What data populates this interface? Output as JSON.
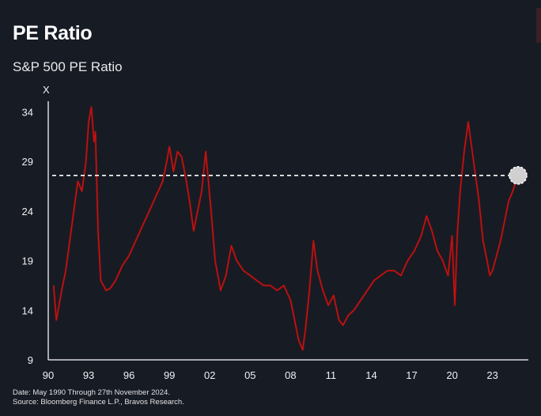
{
  "header": {
    "title": "PE Ratio",
    "subtitle": "S&P 500 PE Ratio"
  },
  "footer": {
    "date_note": "Date: May 1990 Through 27th November 2024.",
    "source_note": "Source: Bloomberg Finance L.P., Bravos Research."
  },
  "chart_data": {
    "type": "line",
    "title": "",
    "xlabel": "",
    "ylabel": "X",
    "xlim": [
      1990,
      2024.9
    ],
    "ylim": [
      9,
      35
    ],
    "x_ticks": [
      {
        "value": 1990,
        "label": "90"
      },
      {
        "value": 1993,
        "label": "93"
      },
      {
        "value": 1996,
        "label": "96"
      },
      {
        "value": 1999,
        "label": "99"
      },
      {
        "value": 2002,
        "label": "02"
      },
      {
        "value": 2005,
        "label": "05"
      },
      {
        "value": 2008,
        "label": "08"
      },
      {
        "value": 2011,
        "label": "11"
      },
      {
        "value": 2014,
        "label": "14"
      },
      {
        "value": 2017,
        "label": "17"
      },
      {
        "value": 2020,
        "label": "20"
      },
      {
        "value": 2023,
        "label": "23"
      }
    ],
    "y_ticks": [
      9,
      14,
      19,
      24,
      29,
      34
    ],
    "reference_line": {
      "y": 27.6,
      "style": "dashed"
    },
    "current_point": {
      "x": 2024.9,
      "y": 27.6
    },
    "colors": {
      "line": "#cc1010",
      "line_dim": "#5a1818",
      "reference": "#ffffff",
      "marker": "#d0d0d0"
    },
    "grid": false,
    "series": [
      {
        "x": [
          1990.4,
          1990.6,
          1990.8,
          1991.0,
          1991.3,
          1991.6,
          1991.9,
          1992.2,
          1992.5,
          1992.8,
          1993.0,
          1993.2,
          1993.4,
          1993.5,
          1993.7,
          1993.9,
          1994.1,
          1994.3,
          1994.6,
          1995.0,
          1995.5,
          1996.0,
          1996.5,
          1997.0,
          1997.5,
          1998.0,
          1998.5,
          1998.8,
          1999.0,
          1999.3,
          1999.6,
          1999.9,
          2000.2,
          2000.5,
          2000.8,
          2001.1,
          2001.4,
          2001.7,
          2001.9,
          2002.1,
          2002.4,
          2002.8,
          2003.2,
          2003.6,
          2004.0,
          2004.5,
          2005.0,
          2005.5,
          2006.0,
          2006.5,
          2007.0,
          2007.5,
          2008.0,
          2008.3,
          2008.6,
          2008.9,
          2009.1,
          2009.4,
          2009.7,
          2010.0,
          2010.4,
          2010.8,
          2011.2,
          2011.6,
          2011.9,
          2012.3,
          2012.7,
          2013.2,
          2013.7,
          2014.2,
          2014.7,
          2015.2,
          2015.7,
          2016.2,
          2016.7,
          2017.2,
          2017.7,
          2018.1,
          2018.5,
          2018.9,
          2019.3,
          2019.7,
          2020.0,
          2020.2,
          2020.4,
          2020.6,
          2020.9,
          2021.2,
          2021.4,
          2021.7,
          2022.0,
          2022.3,
          2022.6,
          2022.8,
          2023.0,
          2023.3,
          2023.6,
          2023.9,
          2024.2,
          2024.5,
          2024.9
        ],
        "y": [
          16.5,
          13.0,
          14.5,
          16.0,
          18.0,
          21.0,
          24.0,
          27.0,
          26.0,
          29.0,
          33.0,
          34.5,
          31.0,
          32.0,
          22.0,
          17.0,
          16.5,
          16.0,
          16.2,
          17.0,
          18.5,
          19.5,
          21.0,
          22.5,
          24.0,
          25.5,
          27.0,
          29.0,
          30.5,
          28.0,
          30.0,
          29.5,
          27.5,
          25.0,
          22.0,
          24.0,
          26.0,
          30.0,
          27.0,
          24.0,
          19.0,
          16.0,
          17.5,
          20.5,
          19.0,
          18.0,
          17.5,
          17.0,
          16.5,
          16.5,
          16.0,
          16.5,
          15.0,
          13.0,
          11.0,
          10.0,
          12.0,
          16.0,
          21.0,
          18.0,
          16.0,
          14.5,
          15.5,
          13.0,
          12.5,
          13.5,
          14.0,
          15.0,
          16.0,
          17.0,
          17.5,
          18.0,
          18.0,
          17.5,
          19.0,
          20.0,
          21.5,
          23.5,
          22.0,
          20.0,
          19.0,
          17.5,
          21.5,
          14.5,
          22.0,
          26.0,
          30.0,
          33.0,
          31.0,
          28.0,
          25.0,
          21.0,
          19.0,
          17.5,
          18.0,
          19.5,
          21.0,
          23.0,
          25.0,
          26.0,
          27.6
        ]
      }
    ]
  }
}
